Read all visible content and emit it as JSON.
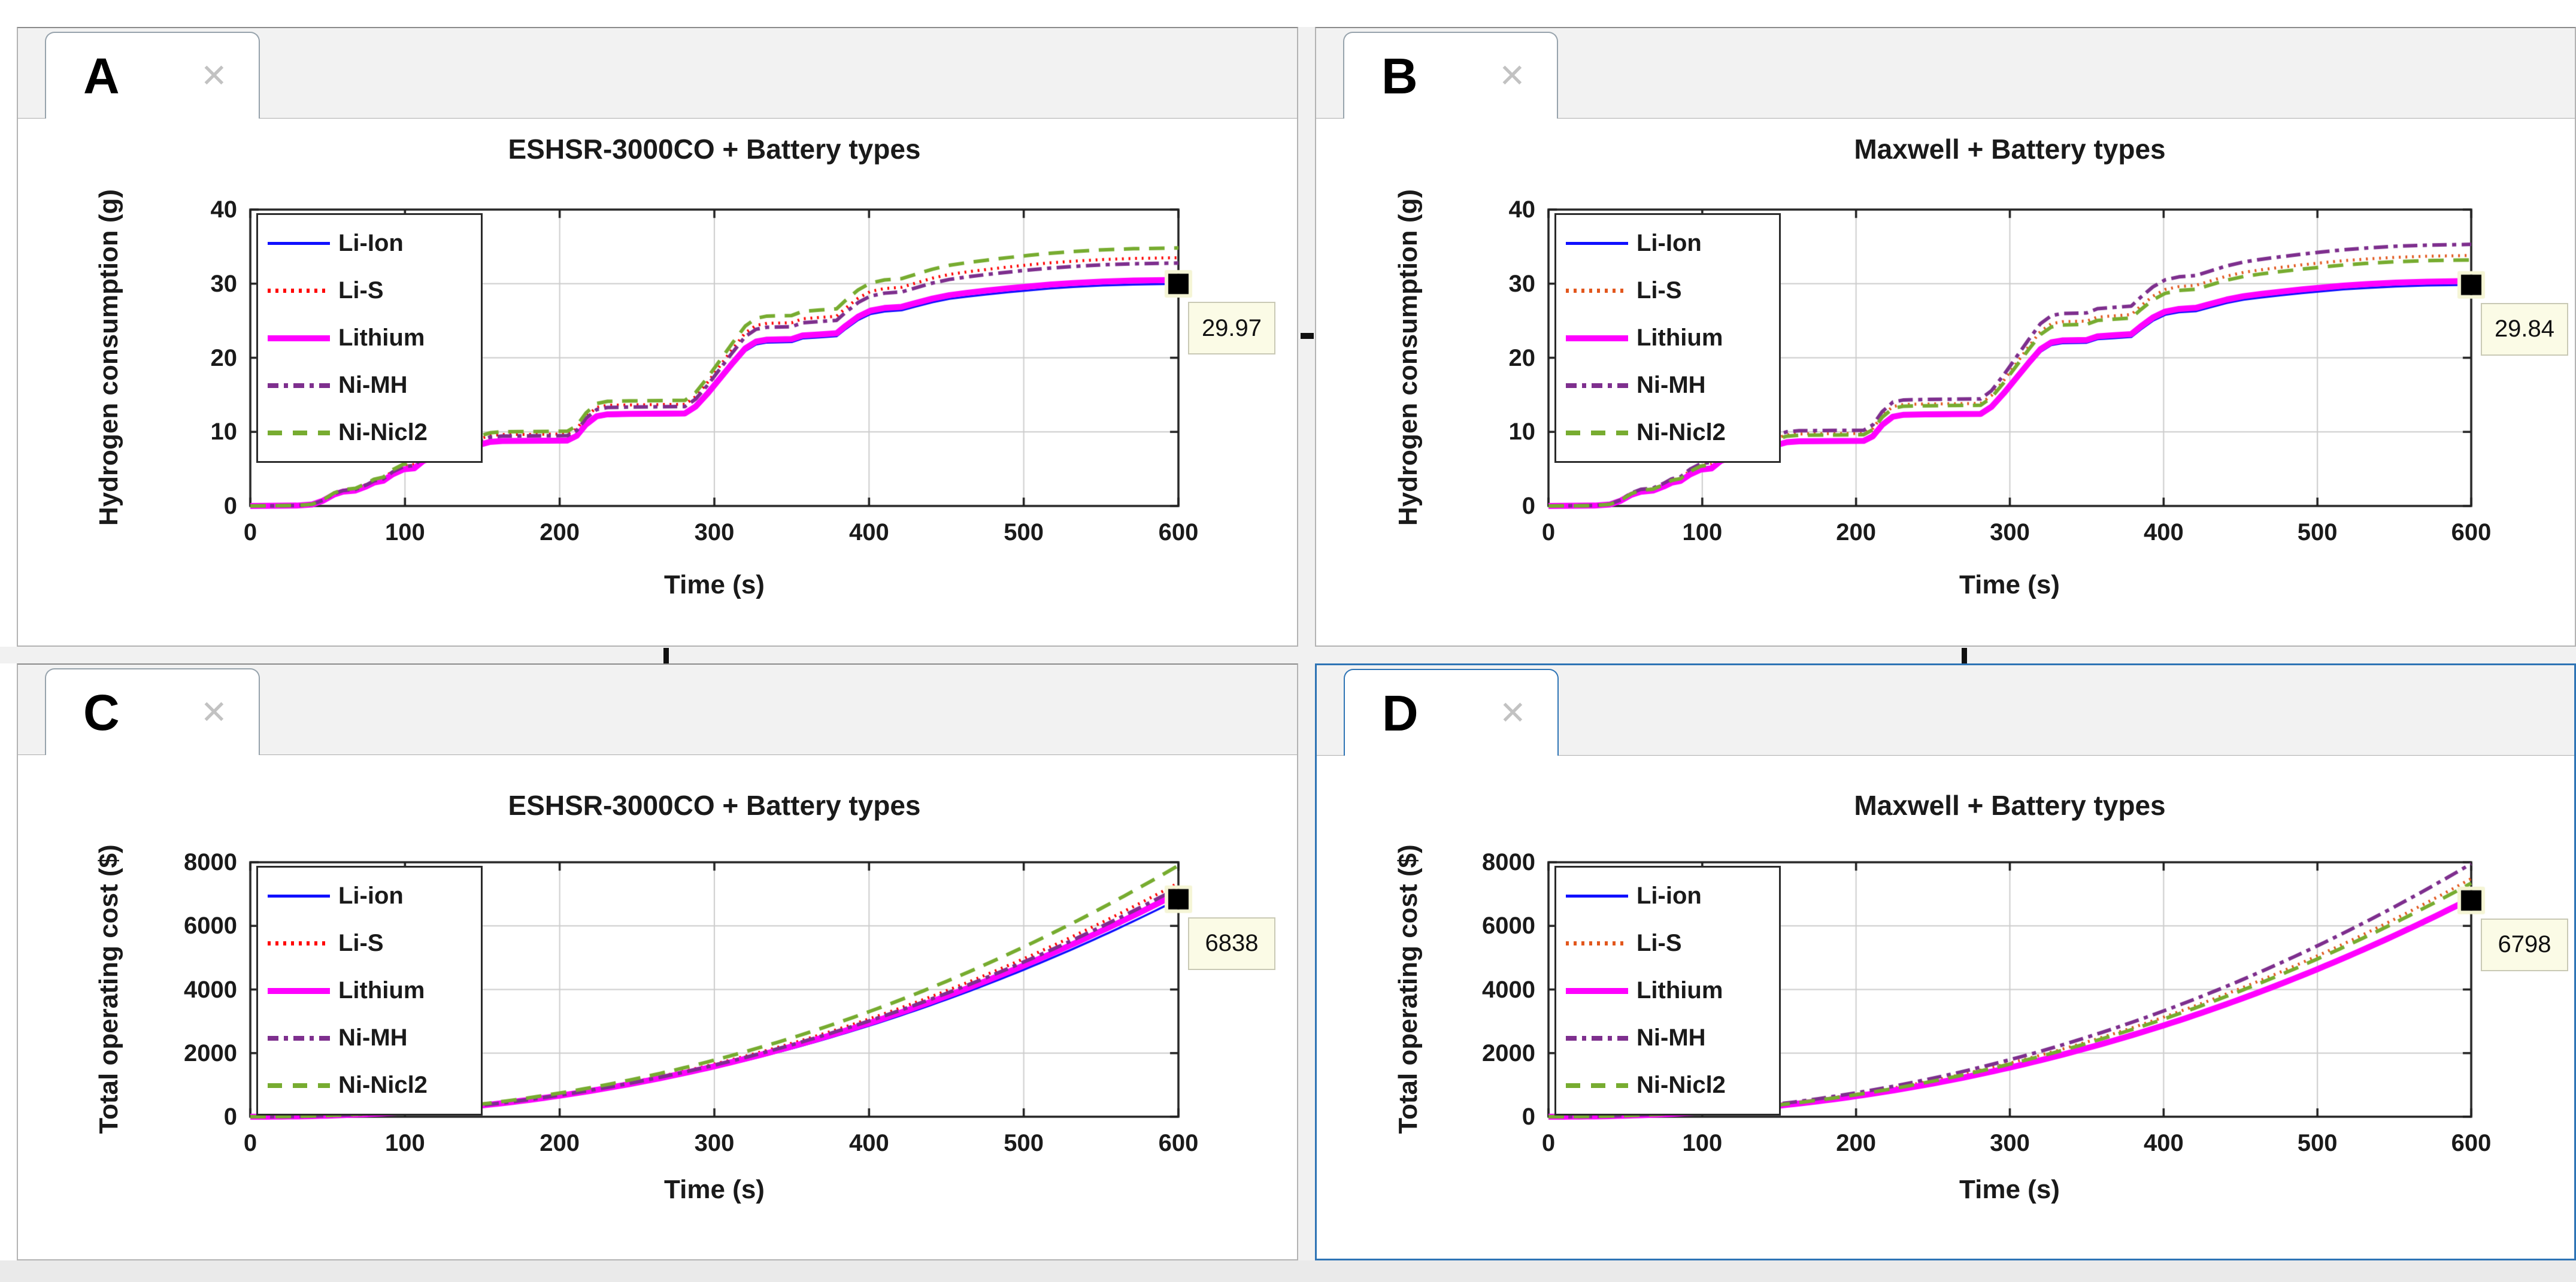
{
  "ui": {
    "close_glyph": "✕",
    "tabs": [
      {
        "label": "A"
      },
      {
        "label": "B"
      },
      {
        "label": "C"
      },
      {
        "label": "D"
      }
    ],
    "active_tab": "D",
    "accent_color": "#2e74b5",
    "tooltip_bg": "#fbfbe6"
  },
  "hydrogen_profile": {
    "points": [
      [
        0,
        0
      ],
      [
        30,
        0.05
      ],
      [
        40,
        0.2
      ],
      [
        47,
        0.7
      ],
      [
        54,
        1.5
      ],
      [
        60,
        1.9
      ],
      [
        68,
        2.05
      ],
      [
        75,
        2.6
      ],
      [
        80,
        3.1
      ],
      [
        86,
        3.35
      ],
      [
        92,
        4.2
      ],
      [
        99,
        4.85
      ],
      [
        106,
        5.0
      ],
      [
        112,
        6.0
      ],
      [
        119,
        6.45
      ],
      [
        126,
        6.6
      ],
      [
        131,
        7.5
      ],
      [
        137,
        8.0
      ],
      [
        148,
        8.1
      ],
      [
        155,
        8.5
      ],
      [
        163,
        8.62
      ],
      [
        205,
        8.68
      ],
      [
        211,
        9.3
      ],
      [
        217,
        10.8
      ],
      [
        224,
        11.9
      ],
      [
        231,
        12.15
      ],
      [
        245,
        12.2
      ],
      [
        281,
        12.27
      ],
      [
        288,
        13.2
      ],
      [
        296,
        15.0
      ],
      [
        304,
        17.0
      ],
      [
        312,
        19.0
      ],
      [
        320,
        20.9
      ],
      [
        327,
        21.8
      ],
      [
        334,
        22.05
      ],
      [
        350,
        22.12
      ],
      [
        357,
        22.6
      ],
      [
        368,
        22.75
      ],
      [
        379,
        22.9
      ],
      [
        385,
        23.9
      ],
      [
        393,
        25.1
      ],
      [
        401,
        25.9
      ],
      [
        410,
        26.25
      ],
      [
        421,
        26.4
      ],
      [
        430,
        26.9
      ],
      [
        441,
        27.5
      ],
      [
        452,
        27.95
      ],
      [
        463,
        28.25
      ],
      [
        476,
        28.55
      ],
      [
        490,
        28.85
      ],
      [
        503,
        29.1
      ],
      [
        517,
        29.35
      ],
      [
        532,
        29.55
      ],
      [
        551,
        29.75
      ],
      [
        571,
        29.88
      ],
      [
        600,
        29.97
      ]
    ]
  },
  "cost_profile": {
    "type": "power",
    "exponent": 2.15,
    "sample_step": 5
  },
  "chart_data": [
    {
      "panel": "A",
      "type": "line",
      "profile": "hydrogen",
      "title": "ESHSR-3000CO + Battery types",
      "xlabel": "Time (s)",
      "ylabel": "Hydrogen consumption (g)",
      "xlim": [
        0,
        600
      ],
      "ylim": [
        0,
        40
      ],
      "xticks": [
        0,
        100,
        200,
        300,
        400,
        500,
        600
      ],
      "yticks": [
        0,
        10,
        20,
        30,
        40
      ],
      "grid": true,
      "legend_position": "upper-left",
      "series": [
        {
          "name": "Li-Ion",
          "color": "#1010ff",
          "style": "solid",
          "line_width": 3.5,
          "scale": 1.0,
          "end_value": 29.97
        },
        {
          "name": "Li-S",
          "color": "#ff0000",
          "style": "dotted",
          "line_width": 5,
          "scale": 1.118,
          "end_value": 33.51
        },
        {
          "name": "Lithium",
          "color": "#ff00ff",
          "style": "solid",
          "line_width": 10,
          "scale": 1.018,
          "end_value": 30.51
        },
        {
          "name": "Ni-MH",
          "color": "#7e2f8e",
          "style": "dashdot",
          "line_width": 6,
          "scale": 1.094,
          "end_value": 32.79
        },
        {
          "name": "Ni-Nicl2",
          "color": "#77ac30",
          "style": "dashed",
          "line_width": 6,
          "scale": 1.162,
          "end_value": 34.83
        }
      ],
      "end_annotation": {
        "text": "29.97",
        "value": 29.97
      }
    },
    {
      "panel": "B",
      "type": "line",
      "profile": "hydrogen",
      "title": "Maxwell + Battery types",
      "xlabel": "Time (s)",
      "ylabel": "Hydrogen consumption (g)",
      "xlim": [
        0,
        600
      ],
      "ylim": [
        0,
        40
      ],
      "xticks": [
        0,
        100,
        200,
        300,
        400,
        500,
        600
      ],
      "yticks": [
        0,
        10,
        20,
        30,
        40
      ],
      "grid": true,
      "legend_position": "upper-left",
      "series": [
        {
          "name": "Li-Ion",
          "color": "#1010ff",
          "style": "solid",
          "line_width": 3.5,
          "scale": 0.9957,
          "end_value": 29.84
        },
        {
          "name": "Li-S",
          "color": "#e2571d",
          "style": "dotted",
          "line_width": 5,
          "scale": 1.128,
          "end_value": 33.8
        },
        {
          "name": "Lithium",
          "color": "#ff00ff",
          "style": "solid",
          "line_width": 10,
          "scale": 1.013,
          "end_value": 30.36
        },
        {
          "name": "Ni-MH",
          "color": "#7e2f8e",
          "style": "dashdot",
          "line_width": 6,
          "scale": 1.178,
          "end_value": 35.3
        },
        {
          "name": "Ni-Nicl2",
          "color": "#77ac30",
          "style": "dashed",
          "line_width": 6,
          "scale": 1.108,
          "end_value": 33.2
        }
      ],
      "end_annotation": {
        "text": "29.84",
        "value": 29.84
      }
    },
    {
      "panel": "C",
      "type": "line",
      "profile": "cost",
      "title": "ESHSR-3000CO + Battery types",
      "xlabel": "Time (s)",
      "ylabel": "Total operating cost ($)",
      "xlim": [
        0,
        600
      ],
      "ylim": [
        0,
        8000
      ],
      "xticks": [
        0,
        100,
        200,
        300,
        400,
        500,
        600
      ],
      "yticks": [
        0,
        2000,
        4000,
        6000,
        8000
      ],
      "grid": true,
      "legend_position": "upper-left",
      "series": [
        {
          "name": "Li-ion",
          "color": "#1010ff",
          "style": "solid",
          "line_width": 3.5,
          "end_value": 6838
        },
        {
          "name": "Li-S",
          "color": "#ff0000",
          "style": "dotted",
          "line_width": 5,
          "end_value": 7351
        },
        {
          "name": "Lithium",
          "color": "#ff00ff",
          "style": "solid",
          "line_width": 10,
          "end_value": 7036
        },
        {
          "name": "Ni-MH",
          "color": "#7e2f8e",
          "style": "dashdot",
          "line_width": 6,
          "end_value": 7200
        },
        {
          "name": "Ni-Nicl2",
          "color": "#77ac30",
          "style": "dashed",
          "line_width": 6,
          "end_value": 7898
        }
      ],
      "end_annotation": {
        "text": "6838",
        "value": 6838
      }
    },
    {
      "panel": "D",
      "type": "line",
      "profile": "cost",
      "title": "Maxwell + Battery types",
      "xlabel": "Time (s)",
      "ylabel": "Total operating cost ($)",
      "xlim": [
        0,
        600
      ],
      "ylim": [
        0,
        8000
      ],
      "xticks": [
        0,
        100,
        200,
        300,
        400,
        500,
        600
      ],
      "yticks": [
        0,
        2000,
        4000,
        6000,
        8000
      ],
      "grid": true,
      "legend_position": "upper-left",
      "series": [
        {
          "name": "Li-ion",
          "color": "#1010ff",
          "style": "solid",
          "line_width": 3.5,
          "end_value": 6798
        },
        {
          "name": "Li-S",
          "color": "#e2571d",
          "style": "dotted",
          "line_width": 5,
          "end_value": 7484
        },
        {
          "name": "Lithium",
          "color": "#ff00ff",
          "style": "solid",
          "line_width": 10,
          "end_value": 6866
        },
        {
          "name": "Ni-MH",
          "color": "#7e2f8e",
          "style": "dashdot",
          "line_width": 6,
          "end_value": 7953
        },
        {
          "name": "Ni-Nicl2",
          "color": "#77ac30",
          "style": "dashed",
          "line_width": 6,
          "end_value": 7342
        }
      ],
      "end_annotation": {
        "text": "6798",
        "value": 6798
      }
    }
  ]
}
